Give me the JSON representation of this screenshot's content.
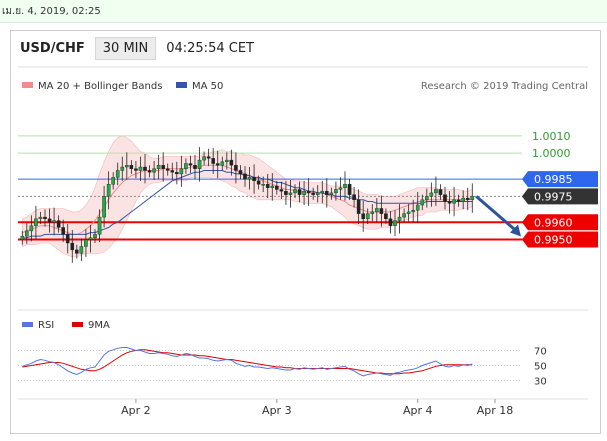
{
  "timestamp": "เม.ย. 4, 2019, 02:25",
  "header": {
    "symbol": "USD/CHF",
    "timeframe": "30 MIN",
    "clock": "04:25:54 CET"
  },
  "legend": {
    "ma20": "MA 20 + Bollinger Bands",
    "ma50": "MA 50",
    "ma20_color": "#f28c8c",
    "ma50_color": "#3355aa"
  },
  "credit": "Research © 2019 Trading Central",
  "chart_data": {
    "type": "candlestick",
    "ylim": [
      0.9915,
      1.0025
    ],
    "levels": [
      {
        "value": 1.001,
        "label": "1.0010",
        "color": "#b8ddb0",
        "label_color": "#339933",
        "style": "text"
      },
      {
        "value": 1.0,
        "label": "1.0000",
        "color": "#b8ddb0",
        "label_color": "#339933",
        "style": "text"
      },
      {
        "value": 0.9985,
        "label": "0.9985",
        "color": "#3366ee",
        "label_color": "#ffffff",
        "style": "blue"
      },
      {
        "value": 0.9975,
        "label": "0.9975",
        "color": "#888888",
        "label_color": "#ffffff",
        "style": "dark"
      },
      {
        "value": 0.996,
        "label": "0.9960",
        "color": "#ee0000",
        "label_color": "#ffffff",
        "style": "red"
      },
      {
        "value": 0.995,
        "label": "0.9950",
        "color": "#ee0000",
        "label_color": "#ffffff",
        "style": "red"
      }
    ],
    "x_ticks": [
      "Apr 2",
      "Apr 3",
      "Apr 4",
      "Apr 18"
    ],
    "x_tick_index": [
      25,
      56,
      87,
      104
    ],
    "n_slots": 110,
    "close": [
      0.9952,
      0.9955,
      0.9958,
      0.9962,
      0.9963,
      0.9962,
      0.996,
      0.9961,
      0.9957,
      0.9953,
      0.9948,
      0.9944,
      0.9942,
      0.9946,
      0.995,
      0.9951,
      0.9953,
      0.9963,
      0.9975,
      0.9982,
      0.9986,
      0.999,
      0.9992,
      0.9993,
      0.9991,
      0.999,
      0.9992,
      0.999,
      0.9989,
      0.9991,
      0.9993,
      0.9991,
      0.999,
      0.9989,
      0.9988,
      0.9991,
      0.9994,
      0.9993,
      0.9991,
      0.9996,
      0.9998,
      0.9997,
      0.9994,
      0.9993,
      0.9995,
      0.9996,
      0.9993,
      0.999,
      0.9988,
      0.9985,
      0.9986,
      0.9984,
      0.9982,
      0.9982,
      0.998,
      0.9981,
      0.9979,
      0.9978,
      0.9976,
      0.9977,
      0.9979,
      0.9976,
      0.9978,
      0.9977,
      0.9976,
      0.9977,
      0.9978,
      0.9976,
      0.9977,
      0.9979,
      0.998,
      0.9982,
      0.9976,
      0.9973,
      0.9965,
      0.9962,
      0.9965,
      0.9966,
      0.9968,
      0.9965,
      0.9962,
      0.9958,
      0.9961,
      0.9963,
      0.9965,
      0.9966,
      0.9967,
      0.997,
      0.9973,
      0.9975,
      0.9977,
      0.9979,
      0.9976,
      0.9972,
      0.9971,
      0.9973,
      0.9972,
      0.9974,
      0.9973,
      0.9975
    ],
    "ma20": [
      0.9954,
      0.9955,
      0.9956,
      0.9957,
      0.9958,
      0.9958,
      0.9958,
      0.9957,
      0.9956,
      0.9955,
      0.9954,
      0.9953,
      0.9953,
      0.9954,
      0.9956,
      0.9958,
      0.9961,
      0.9965,
      0.9969,
      0.9973,
      0.9977,
      0.998,
      0.9983,
      0.9985,
      0.9987,
      0.9988,
      0.9989,
      0.999,
      0.999,
      0.999,
      0.999,
      0.9991,
      0.9991,
      0.9991,
      0.9991,
      0.9991,
      0.9991,
      0.9992,
      0.9992,
      0.9992,
      0.9993,
      0.9993,
      0.9993,
      0.9993,
      0.9993,
      0.9992,
      0.9991,
      0.999,
      0.9989,
      0.9988,
      0.9987,
      0.9986,
      0.9985,
      0.9984,
      0.9983,
      0.9982,
      0.9981,
      0.998,
      0.9979,
      0.9979,
      0.9978,
      0.9978,
      0.9977,
      0.9977,
      0.9977,
      0.9977,
      0.9977,
      0.9976,
      0.9975,
      0.9974,
      0.9973,
      0.9972,
      0.997,
      0.9969,
      0.9968,
      0.9967,
      0.9966,
      0.9966,
      0.9966,
      0.9966,
      0.9966,
      0.9966,
      0.9967,
      0.9968,
      0.9969,
      0.997,
      0.9971,
      0.9972,
      0.9972,
      0.9973,
      0.9973,
      0.9973,
      0.9973,
      0.9973,
      0.9973,
      0.9973,
      0.9973,
      0.9973,
      0.9973,
      0.9974
    ],
    "ma50": [
      0.9951,
      0.9951,
      0.9952,
      0.9952,
      0.9952,
      0.9953,
      0.9953,
      0.9953,
      0.9953,
      0.9953,
      0.9953,
      0.9953,
      0.9953,
      0.9953,
      0.9953,
      0.9954,
      0.9954,
      0.9955,
      0.9956,
      0.9957,
      0.9959,
      0.996,
      0.9962,
      0.9964,
      0.9966,
      0.9968,
      0.997,
      0.9972,
      0.9974,
      0.9976,
      0.9978,
      0.998,
      0.9982,
      0.9984,
      0.9985,
      0.9986,
      0.9987,
      0.9988,
      0.9989,
      0.9989,
      0.999,
      0.999,
      0.999,
      0.999,
      0.999,
      0.9989,
      0.9989,
      0.9988,
      0.9988,
      0.9987,
      0.9987,
      0.9986,
      0.9986,
      0.9985,
      0.9985,
      0.9984,
      0.9983,
      0.9983,
      0.9982,
      0.9981,
      0.998,
      0.998,
      0.9979,
      0.9978,
      0.9978,
      0.9977,
      0.9977,
      0.9976,
      0.9976,
      0.9975,
      0.9975,
      0.9975,
      0.9974,
      0.9974,
      0.9973,
      0.9973,
      0.9972,
      0.9972,
      0.9971,
      0.9971,
      0.9971,
      0.9971,
      0.9971,
      0.9971,
      0.9971,
      0.9971,
      0.9971,
      0.9971,
      0.9971,
      0.9972,
      0.9972,
      0.9972,
      0.9972,
      0.9972,
      0.9972,
      0.9972,
      0.9972,
      0.9972,
      0.9972,
      0.9972
    ],
    "band": [
      0.0008,
      0.0008,
      0.0009,
      0.001,
      0.001,
      0.001,
      0.001,
      0.0011,
      0.0012,
      0.0013,
      0.0013,
      0.0013,
      0.0013,
      0.0013,
      0.0014,
      0.0016,
      0.0019,
      0.0023,
      0.0026,
      0.0028,
      0.0029,
      0.0029,
      0.0027,
      0.0024,
      0.002,
      0.0016,
      0.0012,
      0.001,
      0.0008,
      0.0007,
      0.0007,
      0.0007,
      0.0007,
      0.0007,
      0.0007,
      0.0007,
      0.0007,
      0.0006,
      0.0006,
      0.0006,
      0.0007,
      0.0007,
      0.0008,
      0.0008,
      0.0009,
      0.0009,
      0.001,
      0.001,
      0.0011,
      0.0011,
      0.0012,
      0.0012,
      0.0012,
      0.0011,
      0.001,
      0.0009,
      0.0008,
      0.0007,
      0.0006,
      0.0006,
      0.0006,
      0.0006,
      0.0006,
      0.0006,
      0.0006,
      0.0006,
      0.0006,
      0.0006,
      0.0006,
      0.0007,
      0.0008,
      0.0009,
      0.001,
      0.001,
      0.001,
      0.001,
      0.001,
      0.001,
      0.001,
      0.0009,
      0.0009,
      0.0009,
      0.0008,
      0.0008,
      0.0008,
      0.0008,
      0.0008,
      0.0008,
      0.0008,
      0.0007,
      0.0007,
      0.0007,
      0.0006,
      0.0006,
      0.0006,
      0.0006,
      0.0006,
      0.0005,
      0.0005,
      0.0005
    ],
    "forecast": {
      "from": 0.9975,
      "to": 0.995
    },
    "rsi_panel": {
      "legend": {
        "rsi": "RSI",
        "ma": "9MA"
      },
      "ylim": [
        20,
        80
      ],
      "ticks": [
        70,
        50,
        30
      ],
      "rsi": [
        49,
        51,
        53,
        56,
        58,
        57,
        55,
        54,
        51,
        47,
        43,
        40,
        38,
        41,
        45,
        47,
        48,
        56,
        64,
        69,
        71,
        73,
        74,
        74,
        72,
        70,
        70,
        68,
        66,
        66,
        67,
        66,
        65,
        63,
        62,
        64,
        66,
        65,
        62,
        60,
        60,
        59,
        57,
        56,
        57,
        58,
        57,
        53,
        51,
        49,
        50,
        48,
        48,
        47,
        46,
        47,
        46,
        45,
        44,
        44,
        46,
        45,
        47,
        46,
        45,
        46,
        47,
        45,
        46,
        47,
        48,
        49,
        45,
        43,
        39,
        36,
        38,
        39,
        40,
        39,
        38,
        37,
        40,
        41,
        43,
        44,
        45,
        47,
        50,
        52,
        54,
        56,
        52,
        49,
        48,
        50,
        49,
        51,
        50,
        52
      ],
      "ma": [
        48,
        49,
        50,
        51,
        52,
        53,
        54,
        54,
        54,
        53,
        51,
        49,
        47,
        45,
        44,
        43,
        43,
        45,
        48,
        52,
        56,
        60,
        64,
        67,
        69,
        70,
        71,
        71,
        70,
        69,
        68,
        67,
        67,
        66,
        65,
        64,
        64,
        64,
        64,
        63,
        63,
        62,
        61,
        60,
        59,
        58,
        58,
        57,
        56,
        55,
        54,
        53,
        52,
        51,
        50,
        49,
        48,
        48,
        47,
        47,
        46,
        46,
        46,
        46,
        46,
        46,
        46,
        46,
        46,
        46,
        46,
        46,
        46,
        45,
        44,
        43,
        42,
        41,
        40,
        40,
        39,
        39,
        39,
        39,
        40,
        40,
        41,
        42,
        43,
        45,
        47,
        49,
        50,
        51,
        51,
        51,
        51,
        51,
        51,
        51
      ]
    }
  }
}
